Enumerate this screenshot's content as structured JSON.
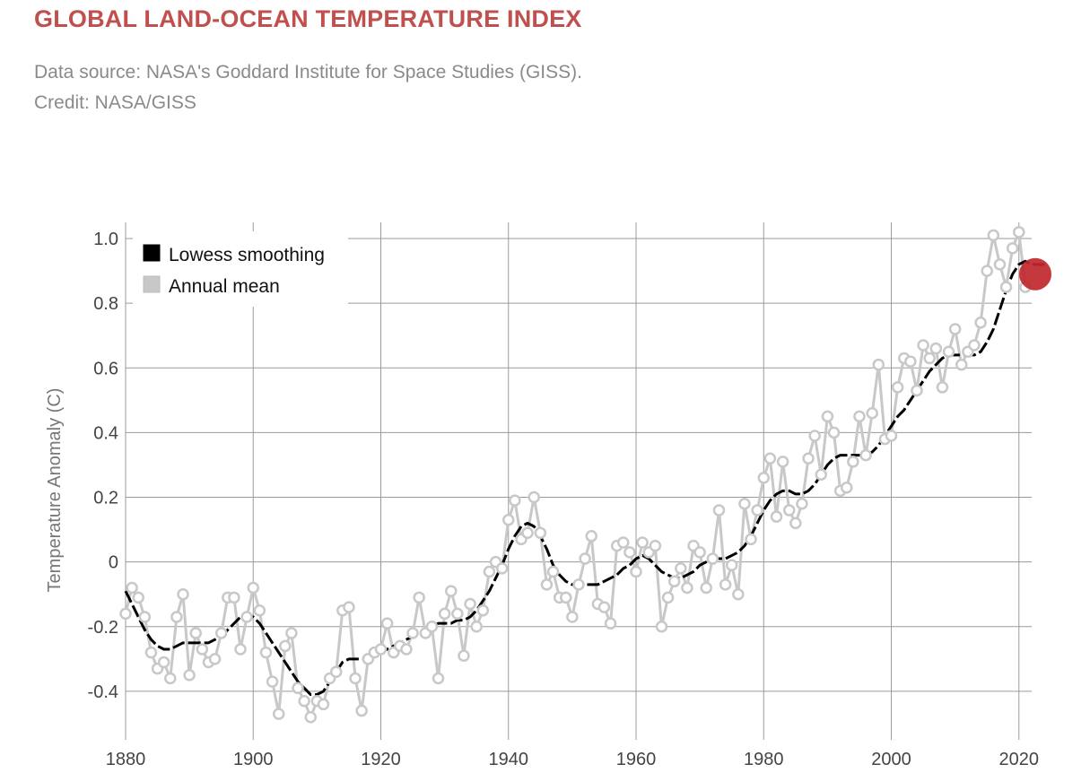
{
  "header": {
    "title": "GLOBAL LAND-OCEAN TEMPERATURE INDEX",
    "source_line": "Data source: NASA's Goddard Institute for Space Studies (GISS).",
    "credit_line": "Credit: NASA/GISS"
  },
  "colors": {
    "title": "#c0504d",
    "annual": "#c8c8c8",
    "smooth": "#000000",
    "highlight": "#c0272d",
    "grid": "#9a9a9a"
  },
  "chart_data": {
    "type": "line",
    "ylabel": "Temperature Anomaly (C)",
    "xlabel": "",
    "xlim": [
      1880,
      2022
    ],
    "ylim": [
      -0.55,
      1.05
    ],
    "x_ticks": [
      1880,
      1900,
      1920,
      1940,
      1960,
      1980,
      2000,
      2020
    ],
    "x_tick_labels": [
      "1880",
      "1900",
      "1920",
      "1940",
      "1960",
      "1980",
      "2000",
      "2020"
    ],
    "y_ticks": [
      1.0,
      0.8,
      0.6,
      0.4,
      0.2,
      0,
      -0.2,
      -0.4
    ],
    "y_tick_labels": [
      "1.0",
      "0.8",
      "0.6",
      "0.4",
      "0.2",
      "0",
      "-0.2",
      "-0.4"
    ],
    "grid": true,
    "legend": {
      "placement": "top-left",
      "entries": [
        {
          "label": "Lowess smoothing",
          "color": "#000000"
        },
        {
          "label": "Annual mean",
          "color": "#c8c8c8"
        }
      ]
    },
    "x_start": 1880,
    "series": [
      {
        "name": "Annual mean",
        "values": [
          -0.16,
          -0.08,
          -0.11,
          -0.17,
          -0.28,
          -0.33,
          -0.31,
          -0.36,
          -0.17,
          -0.1,
          -0.35,
          -0.22,
          -0.27,
          -0.31,
          -0.3,
          -0.22,
          -0.11,
          -0.11,
          -0.27,
          -0.17,
          -0.08,
          -0.15,
          -0.28,
          -0.37,
          -0.47,
          -0.26,
          -0.22,
          -0.39,
          -0.43,
          -0.48,
          -0.43,
          -0.44,
          -0.36,
          -0.34,
          -0.15,
          -0.14,
          -0.36,
          -0.46,
          -0.3,
          -0.28,
          -0.27,
          -0.19,
          -0.28,
          -0.26,
          -0.27,
          -0.22,
          -0.11,
          -0.22,
          -0.2,
          -0.36,
          -0.16,
          -0.09,
          -0.16,
          -0.29,
          -0.13,
          -0.2,
          -0.15,
          -0.03,
          0.0,
          -0.02,
          0.13,
          0.19,
          0.07,
          0.09,
          0.2,
          0.09,
          -0.07,
          -0.03,
          -0.11,
          -0.11,
          -0.17,
          -0.07,
          0.01,
          0.08,
          -0.13,
          -0.14,
          -0.19,
          0.05,
          0.06,
          0.03,
          -0.03,
          0.06,
          0.03,
          0.05,
          -0.2,
          -0.11,
          -0.06,
          -0.02,
          -0.08,
          0.05,
          0.03,
          -0.08,
          0.01,
          0.16,
          -0.07,
          -0.01,
          -0.1,
          0.18,
          0.07,
          0.16,
          0.26,
          0.32,
          0.14,
          0.31,
          0.16,
          0.12,
          0.18,
          0.32,
          0.39,
          0.27,
          0.45,
          0.4,
          0.22,
          0.23,
          0.31,
          0.45,
          0.33,
          0.46,
          0.61,
          0.38,
          0.39,
          0.54,
          0.63,
          0.62,
          0.53,
          0.67,
          0.63,
          0.66,
          0.54,
          0.65,
          0.72,
          0.61,
          0.65,
          0.67,
          0.74,
          0.9,
          1.01,
          0.92,
          0.85,
          0.97,
          1.02,
          0.85
        ]
      },
      {
        "name": "Lowess smoothing",
        "values": [
          -0.09,
          -0.13,
          -0.17,
          -0.21,
          -0.24,
          -0.26,
          -0.27,
          -0.27,
          -0.26,
          -0.25,
          -0.25,
          -0.25,
          -0.25,
          -0.25,
          -0.24,
          -0.23,
          -0.21,
          -0.19,
          -0.17,
          -0.16,
          -0.17,
          -0.19,
          -0.22,
          -0.25,
          -0.28,
          -0.31,
          -0.34,
          -0.37,
          -0.39,
          -0.41,
          -0.41,
          -0.4,
          -0.37,
          -0.34,
          -0.31,
          -0.3,
          -0.3,
          -0.3,
          -0.3,
          -0.29,
          -0.28,
          -0.27,
          -0.26,
          -0.25,
          -0.24,
          -0.23,
          -0.22,
          -0.21,
          -0.2,
          -0.19,
          -0.19,
          -0.19,
          -0.18,
          -0.18,
          -0.17,
          -0.15,
          -0.12,
          -0.09,
          -0.05,
          -0.01,
          0.04,
          0.08,
          0.11,
          0.12,
          0.11,
          0.08,
          0.04,
          -0.01,
          -0.04,
          -0.06,
          -0.07,
          -0.07,
          -0.07,
          -0.07,
          -0.07,
          -0.06,
          -0.05,
          -0.04,
          -0.02,
          -0.01,
          0.01,
          0.02,
          0.01,
          -0.01,
          -0.03,
          -0.04,
          -0.05,
          -0.05,
          -0.04,
          -0.03,
          -0.01,
          0.0,
          0.01,
          0.01,
          0.01,
          0.02,
          0.03,
          0.05,
          0.08,
          0.12,
          0.16,
          0.19,
          0.21,
          0.22,
          0.22,
          0.21,
          0.21,
          0.22,
          0.24,
          0.27,
          0.3,
          0.32,
          0.33,
          0.33,
          0.33,
          0.33,
          0.33,
          0.34,
          0.36,
          0.39,
          0.42,
          0.45,
          0.47,
          0.5,
          0.53,
          0.56,
          0.59,
          0.61,
          0.63,
          0.64,
          0.64,
          0.64,
          0.64,
          0.64,
          0.65,
          0.68,
          0.72,
          0.78,
          0.84,
          0.89,
          0.92,
          0.93,
          0.92,
          0.92,
          0.92
        ]
      }
    ],
    "highlight": {
      "x": 2022,
      "y": 0.89,
      "color": "#c0272d"
    }
  }
}
